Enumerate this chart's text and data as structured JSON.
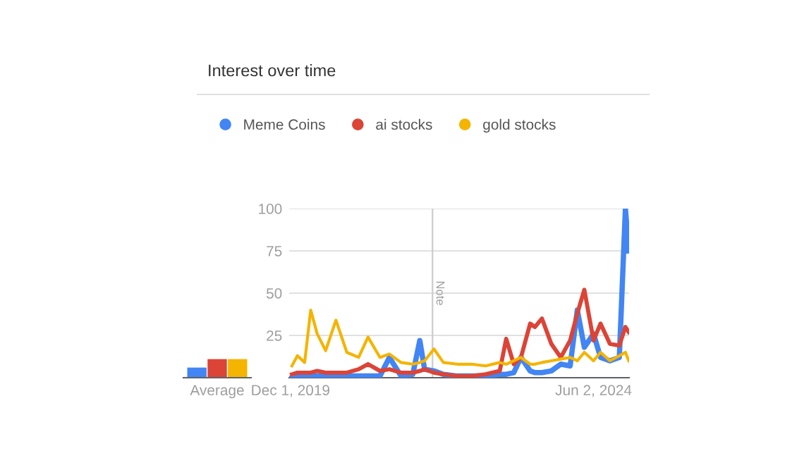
{
  "chart_data": [
    {
      "type": "bar",
      "categories": [
        "Average"
      ],
      "ylim": [
        0,
        100
      ],
      "tick_labels": "x",
      "series": [
        {
          "color": "#4285f4",
          "values": [
            6
          ]
        },
        {
          "color": "#db4437",
          "values": [
            11
          ]
        },
        {
          "color": "#f4b400",
          "values": [
            11
          ]
        }
      ]
    },
    {
      "type": "line",
      "title": "Interest over time",
      "legend": "top left",
      "grid": "y",
      "line_style": "solid",
      "marker": "none",
      "x": [
        "2019-12-09",
        "2020-01-08",
        "2020-02-16",
        "2020-03-20",
        "2020-04-24",
        "2020-06-09",
        "2020-08-04",
        "2020-10-02",
        "2020-12-05",
        "2021-01-25",
        "2021-03-31",
        "2021-05-21",
        "2021-07-23",
        "2021-09-25",
        "2021-11-02",
        "2021-11-28",
        "2022-01-18",
        "2022-03-10",
        "2022-05-25",
        "2022-08-10",
        "2022-10-25",
        "2023-01-10",
        "2023-02-14",
        "2023-03-27",
        "2023-05-05",
        "2023-06-24",
        "2023-07-20",
        "2023-08-27",
        "2023-10-17",
        "2023-12-07",
        "2024-01-27",
        "2024-03-06",
        "2024-04-13",
        "2024-06-02",
        "2024-07-10",
        "2024-08-30",
        "2024-10-20",
        "2024-11-22",
        "2024-12-10"
      ],
      "xlim": [
        "2019-11-24",
        "2024-12-12"
      ],
      "xticks": [
        {
          "value": "2019-12-01",
          "label": "Dec 1, 2019"
        },
        {
          "value": "2024-06-02",
          "label": "Jun 2, 2024"
        }
      ],
      "ylim": [
        0,
        100
      ],
      "yticks": [
        25,
        50,
        75,
        100
      ],
      "ref_lines": [
        {
          "axis": "x",
          "value": "2022-01-10",
          "label": "Note",
          "color": "#cccccc"
        }
      ],
      "series": [
        {
          "name": "Meme Coins",
          "color": "#4285f4",
          "values": [
            0,
            1,
            1,
            1,
            1,
            1,
            1,
            1,
            1,
            1,
            1,
            12,
            1,
            2,
            22,
            5,
            4,
            2,
            1,
            1,
            1,
            2,
            2,
            3,
            12,
            4,
            3,
            3,
            4,
            8,
            7,
            40,
            18,
            26,
            12,
            10,
            12,
            100,
            75
          ]
        },
        {
          "name": "ai stocks",
          "color": "#db4437",
          "values": [
            2,
            3,
            3,
            3,
            4,
            3,
            3,
            3,
            5,
            8,
            4,
            5,
            3,
            3,
            4,
            5,
            3,
            2,
            1,
            1,
            2,
            4,
            23,
            8,
            12,
            32,
            30,
            35,
            20,
            12,
            22,
            38,
            52,
            22,
            32,
            20,
            19,
            30,
            27
          ]
        },
        {
          "name": "gold stocks",
          "color": "#f4b400",
          "values": [
            7,
            13,
            9,
            40,
            26,
            16,
            34,
            15,
            12,
            24,
            12,
            14,
            9,
            8,
            9,
            10,
            17,
            9,
            8,
            8,
            7,
            9,
            8,
            10,
            12,
            8,
            8,
            9,
            10,
            11,
            12,
            10,
            15,
            10,
            15,
            10,
            13,
            15,
            10
          ]
        }
      ]
    }
  ]
}
